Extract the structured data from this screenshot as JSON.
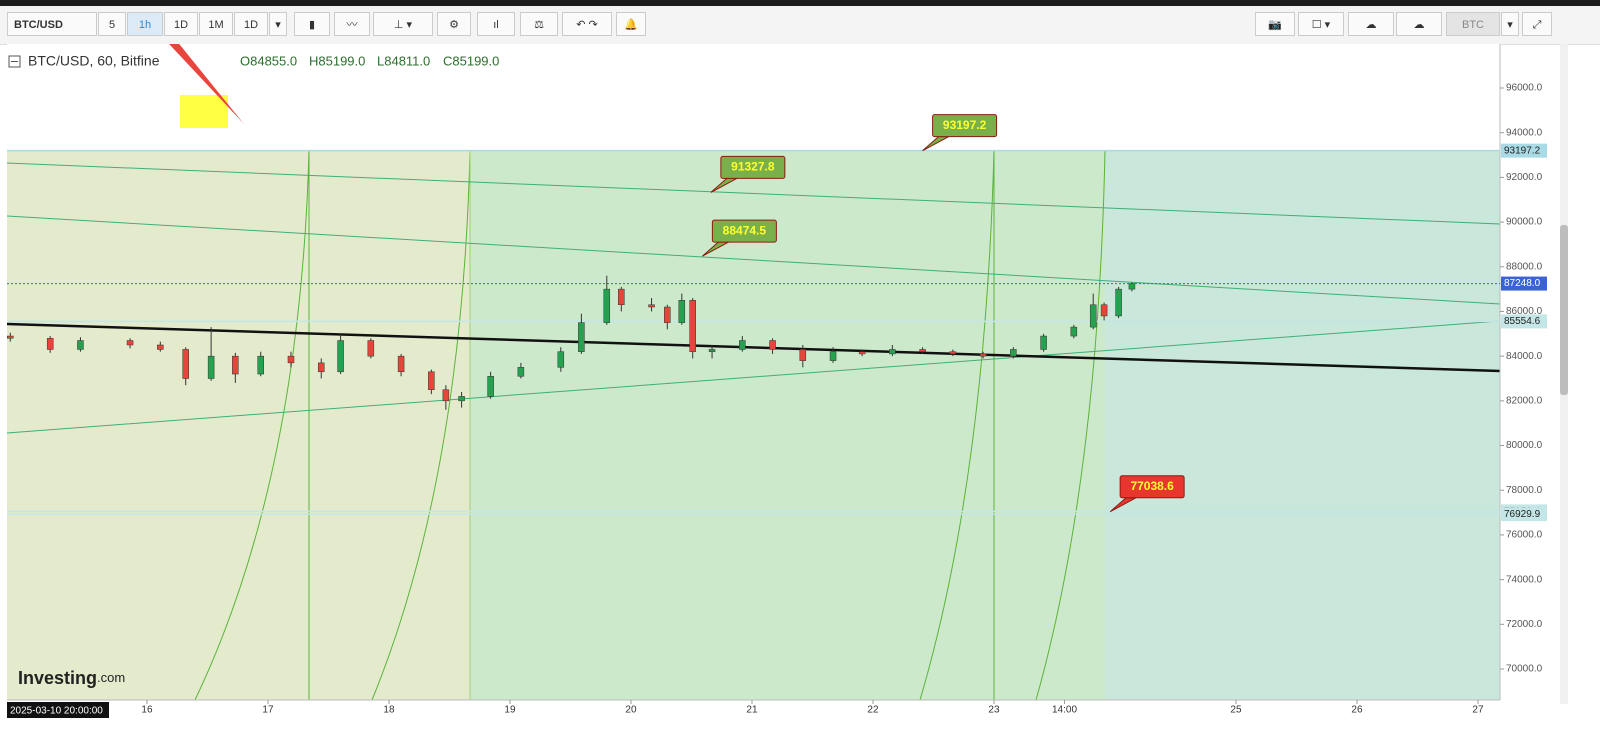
{
  "toolbar": {
    "symbol": "BTC/USD",
    "intervals": [
      "5",
      "1h",
      "1D",
      "1M",
      "1D"
    ],
    "currency": "BTC"
  },
  "legend": {
    "title": "BTC/USD, 60, Bitfine",
    "open": "O84855.0",
    "high": "H85199.0",
    "low": "L84811.0",
    "close": "C85199.0"
  },
  "logo": {
    "main": "Investing",
    "suffix": ".com"
  },
  "crosshair_label": "2025-03-10 20:00:00",
  "chart_data": {
    "type": "candlestick",
    "x": [
      14.87,
      15.2,
      15.45,
      15.86,
      16.11,
      16.32,
      16.53,
      16.73,
      16.94,
      17.19,
      17.44,
      17.6,
      17.85,
      18.1,
      18.35,
      18.47,
      18.6,
      18.84,
      19.09,
      19.42,
      19.59,
      19.8,
      19.92,
      20.17,
      20.3,
      20.42,
      20.51,
      20.67,
      20.92,
      21.17,
      21.42,
      21.67,
      21.91,
      22.16,
      22.41,
      22.66,
      22.91,
      23.16,
      23.41,
      23.66,
      23.82,
      23.91,
      24.03,
      24.14
    ],
    "open": [
      84900,
      84800,
      84300,
      84700,
      84500,
      84300,
      83000,
      84000,
      83200,
      84000,
      83700,
      83300,
      84700,
      84000,
      83300,
      82500,
      82000,
      82200,
      83100,
      83500,
      84200,
      85500,
      87000,
      86300,
      86200,
      85500,
      86500,
      84200,
      84300,
      84700,
      84300,
      83800,
      84200,
      84100,
      84300,
      84200,
      84100,
      84000,
      84300,
      84900,
      85300,
      86300,
      85800,
      87000
    ],
    "high": [
      85050,
      84900,
      84850,
      84800,
      84650,
      84400,
      85300,
      84150,
      84200,
      84200,
      83900,
      85000,
      84800,
      84100,
      83400,
      82700,
      82400,
      83300,
      83700,
      84400,
      85900,
      87600,
      87100,
      86600,
      86300,
      86800,
      86600,
      84500,
      84900,
      84800,
      84500,
      84400,
      84300,
      84500,
      84400,
      84300,
      84200,
      84400,
      85000,
      85400,
      86800,
      86400,
      87100,
      87300
    ],
    "low": [
      84650,
      84150,
      84200,
      84350,
      84200,
      82700,
      82900,
      82800,
      83100,
      83500,
      83000,
      83200,
      83900,
      83100,
      82300,
      81600,
      81700,
      82100,
      83000,
      83300,
      84100,
      85400,
      86000,
      86000,
      85200,
      85400,
      83900,
      83900,
      84200,
      84100,
      83500,
      83700,
      84000,
      84000,
      84100,
      84000,
      83900,
      83900,
      84200,
      84800,
      85200,
      85600,
      85700,
      86900
    ],
    "close": [
      84800,
      84300,
      84700,
      84500,
      84300,
      83000,
      84000,
      83200,
      84000,
      83700,
      83300,
      84700,
      84000,
      83300,
      82500,
      82000,
      82200,
      83100,
      83500,
      84200,
      85500,
      87000,
      86300,
      86200,
      85500,
      86500,
      84200,
      84300,
      84700,
      84300,
      83800,
      84200,
      84100,
      84300,
      84200,
      84100,
      84000,
      84300,
      84900,
      85300,
      86300,
      85800,
      87000,
      87248
    ],
    "up_color": "#27a150",
    "down_color": "#e5453a",
    "xlim": [
      14.843,
      27.182
    ],
    "xticks": [
      16,
      17,
      18,
      19,
      20,
      21,
      22,
      23,
      {
        "value": 23.583,
        "label": "14:00"
      },
      25,
      26,
      27
    ],
    "ylim": [
      68613,
      97969
    ],
    "yticks": [
      {
        "value": 70000,
        "label": "70000.0"
      },
      {
        "value": 72000,
        "label": "72000.0"
      },
      {
        "value": 74000,
        "label": "74000.0"
      },
      {
        "value": 76000,
        "label": "76000.0"
      },
      {
        "value": 78000,
        "label": "78000.0"
      },
      {
        "value": 80000,
        "label": "80000.0"
      },
      {
        "value": 82000,
        "label": "82000.0"
      },
      {
        "value": 84000,
        "label": "84000.0"
      },
      {
        "value": 86000,
        "label": "86000.0"
      },
      {
        "value": 88000,
        "label": "88000.0"
      },
      {
        "value": 90000,
        "label": "90000.0"
      },
      {
        "value": 92000,
        "label": "92000.0"
      },
      {
        "value": 94000,
        "label": "94000.0"
      },
      {
        "value": 96000,
        "label": "96000.0"
      }
    ],
    "price_levels": [
      93197.2,
      {
        "value": 87248,
        "label": "87248.0"
      },
      85554.6,
      77052.4,
      76929.9
    ],
    "level_colors": [
      "#a9dbe6",
      "#3b63d6",
      "#c5e6e6",
      "#c5e6e6",
      "#c5e6e6"
    ],
    "annotations": {
      "x": [
        22.41,
        20.66,
        20.59,
        23.96
      ],
      "values": [
        93197.2,
        91327.8,
        88474.5,
        77038.6
      ],
      "colors": [
        "#7ab04a",
        "#7ab04a",
        "#7ab04a",
        "#e8362e"
      ]
    }
  }
}
